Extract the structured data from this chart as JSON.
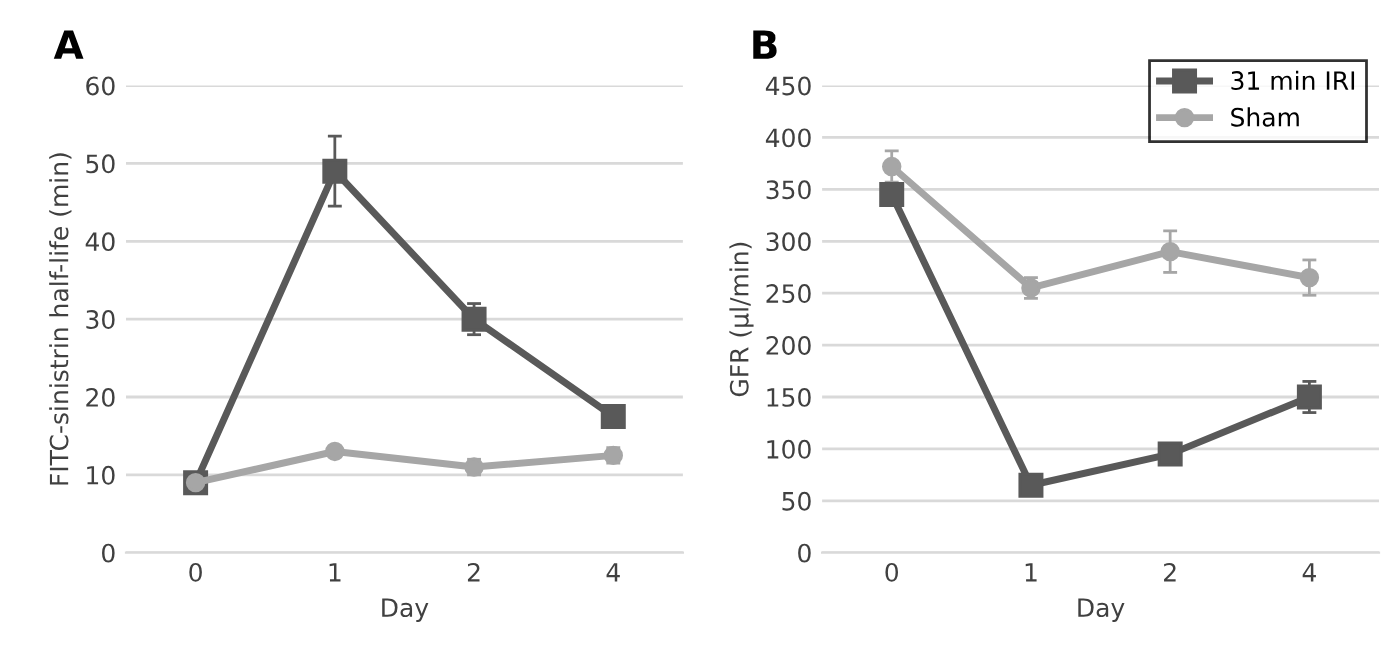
{
  "chart_data": [
    {
      "type": "line",
      "title": "A",
      "xlabel": "Day",
      "ylabel": "FITC-sinistrin half-life (min)",
      "categories": [
        "0",
        "1",
        "2",
        "4"
      ],
      "ylim": [
        0,
        60
      ],
      "yticks": [
        0,
        10,
        20,
        30,
        40,
        50,
        60
      ],
      "grid": "y",
      "legend": false,
      "series": [
        {
          "color": "#595959",
          "marker": "square",
          "values": [
            9,
            49,
            30,
            17.5
          ],
          "errors": [
            0.5,
            4.5,
            2,
            0.5
          ]
        },
        {
          "color": "#a6a6a6",
          "marker": "circle",
          "values": [
            9,
            13,
            11,
            12.5
          ],
          "errors": [
            0.5,
            0.5,
            1,
            1
          ]
        }
      ]
    },
    {
      "type": "line",
      "title": "B",
      "xlabel": "Day",
      "ylabel": "GFR (µl/min)",
      "categories": [
        "0",
        "1",
        "2",
        "4"
      ],
      "ylim": [
        0,
        450
      ],
      "yticks": [
        0,
        50,
        100,
        150,
        200,
        250,
        300,
        350,
        400,
        450
      ],
      "grid": "y",
      "legend": "top right",
      "series": [
        {
          "name": "31 min IRI",
          "color": "#595959",
          "marker": "square",
          "values": [
            345,
            65,
            95,
            150
          ],
          "errors": [
            10,
            8,
            7,
            15
          ]
        },
        {
          "name": "Sham",
          "color": "#a6a6a6",
          "marker": "circle",
          "values": [
            372,
            255,
            290,
            265
          ],
          "errors": [
            15,
            10,
            20,
            17
          ]
        }
      ]
    }
  ]
}
